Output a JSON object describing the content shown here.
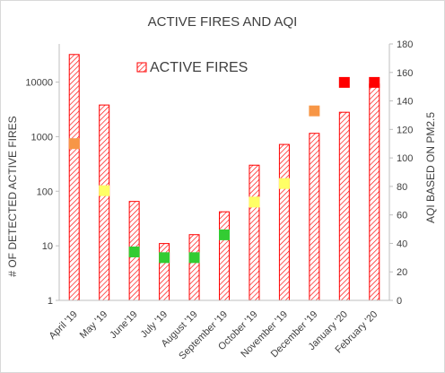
{
  "chart_data": {
    "type": "bar",
    "title": "ACTIVE FIRES AND AQI",
    "ylabel": "# OF DETECTED ACTIVE FIRES",
    "y2label": "AQI BASED ON PM2.5",
    "categories": [
      "April '19",
      "May '19",
      "June'19",
      "July '19",
      "August '19",
      "September '19",
      "October '19",
      "November '19",
      "December '19",
      "January '20",
      "February '20"
    ],
    "y_scale": "log",
    "ylim": [
      1,
      50000
    ],
    "y_ticks": [
      "1",
      "10",
      "100",
      "1000",
      "10000"
    ],
    "y2lim": [
      0,
      180
    ],
    "y2_ticks": [
      "0",
      "20",
      "40",
      "60",
      "80",
      "100",
      "120",
      "140",
      "160",
      "180"
    ],
    "legend": {
      "position": "top-left",
      "entries": [
        "ACTIVE FIRES"
      ]
    },
    "series": [
      {
        "name": "ACTIVE FIRES",
        "kind": "bar",
        "axis": "left",
        "color": "#ff0000",
        "pattern": "diagonal-hatch",
        "values": [
          32000,
          3800,
          65,
          11,
          16,
          42,
          300,
          720,
          1150,
          2800,
          9200
        ]
      },
      {
        "kind": "marker",
        "axis": "right",
        "values": [
          110,
          77,
          34,
          30,
          30,
          46,
          69,
          82,
          133,
          153,
          153
        ],
        "colors": [
          "#f79646",
          "#ffff66",
          "#33cc33",
          "#33cc33",
          "#33cc33",
          "#33cc33",
          "#ffff66",
          "#ffff66",
          "#f79646",
          "#ff0000",
          "#ff0000"
        ]
      }
    ]
  }
}
